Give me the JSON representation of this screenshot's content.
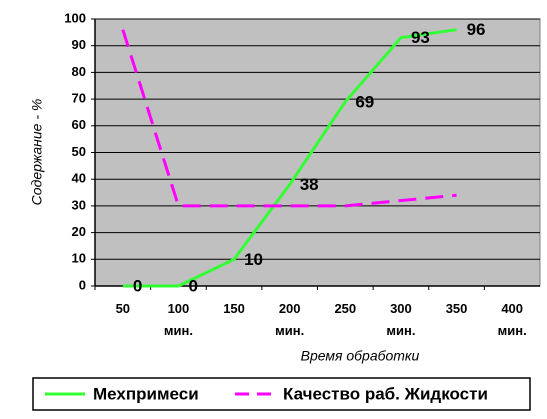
{
  "chart_data": {
    "type": "line",
    "categories": [
      "50",
      "100 мин.",
      "150",
      "200 мин.",
      "250",
      "300 мин.",
      "350",
      "400 мин."
    ],
    "series": [
      {
        "name": "Мехпримеси",
        "color": "#33ff33",
        "dash": false,
        "values": [
          0,
          0,
          10,
          38,
          69,
          93,
          96,
          null
        ],
        "data_labels": true
      },
      {
        "name": "Качество раб. Жидкости",
        "color": "#ff00ff",
        "dash": true,
        "values": [
          96,
          30,
          30,
          30,
          30,
          32,
          34,
          null
        ],
        "data_labels": false
      }
    ],
    "ylim": [
      0,
      100
    ],
    "yticks": [
      0,
      10,
      20,
      30,
      40,
      50,
      60,
      70,
      80,
      90,
      100
    ],
    "xlabel": "Время обработки",
    "ylabel": "Содержание - %",
    "grid": true,
    "legend": "bottom"
  }
}
